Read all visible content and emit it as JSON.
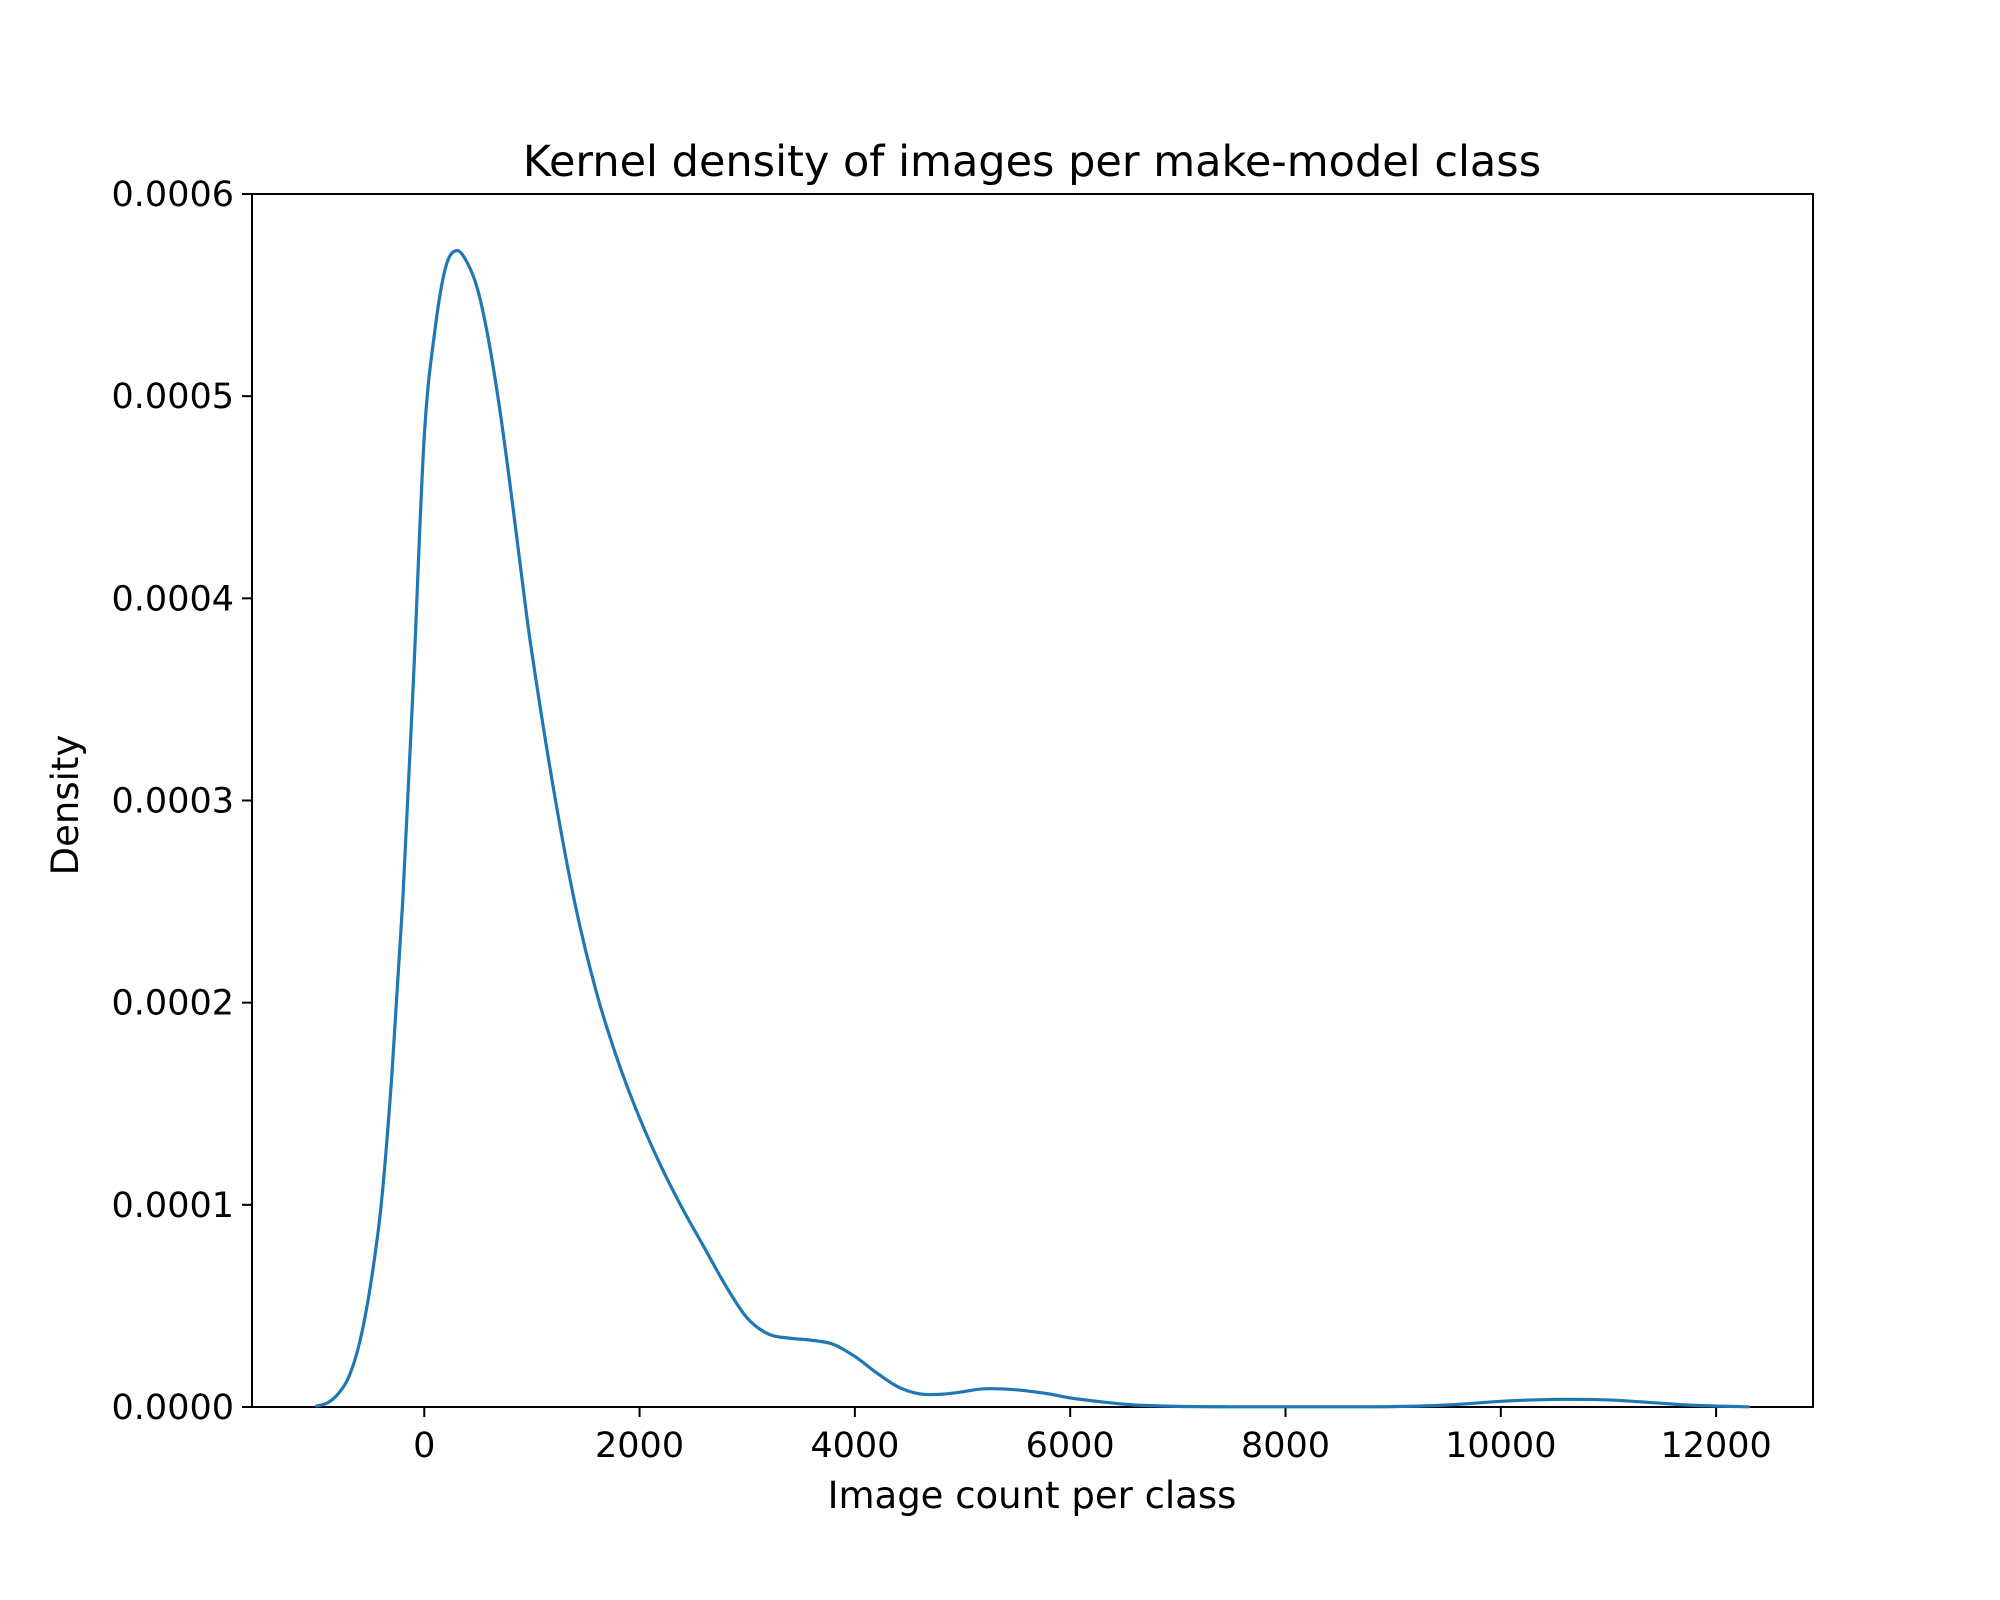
{
  "chart_data": {
    "type": "line",
    "title": "Kernel density of images per make-model class",
    "xlabel": "Image count per class",
    "ylabel": "Density",
    "xlim": [
      -1600,
      12900
    ],
    "ylim": [
      0,
      0.0006
    ],
    "xticks": [
      0,
      2000,
      4000,
      6000,
      8000,
      10000,
      12000
    ],
    "xtick_labels": [
      "0",
      "2000",
      "4000",
      "6000",
      "8000",
      "10000",
      "12000"
    ],
    "yticks": [
      0,
      0.0001,
      0.0002,
      0.0003,
      0.0004,
      0.0005,
      0.0006
    ],
    "ytick_labels": [
      "0.0000",
      "0.0001",
      "0.0002",
      "0.0003",
      "0.0004",
      "0.0005",
      "0.0006"
    ],
    "grid": false,
    "line_color": "#1f77b4",
    "series": [
      {
        "x": [
          -1000,
          -900,
          -800,
          -700,
          -600,
          -500,
          -400,
          -300,
          -200,
          -100,
          0,
          100,
          200,
          300,
          400,
          500,
          600,
          700,
          800,
          900,
          1000,
          1200,
          1400,
          1600,
          1800,
          2000,
          2200,
          2400,
          2600,
          2800,
          3000,
          3200,
          3400,
          3600,
          3800,
          4000,
          4200,
          4400,
          4600,
          4800,
          5000,
          5200,
          5500,
          5800,
          6000,
          6300,
          6600,
          7000,
          7500,
          8000,
          8500,
          9000,
          9500,
          10000,
          10300,
          10600,
          11000,
          11400,
          11800,
          12300
        ],
        "y": [
          5e-07,
          2e-06,
          6.5e-06,
          1.5e-05,
          3.2e-05,
          6e-05,
          0.0001,
          0.000165,
          0.00025,
          0.00036,
          0.00048,
          0.000533,
          0.000564,
          0.000572,
          0.000566,
          0.000552,
          0.000527,
          0.000494,
          0.000455,
          0.000413,
          0.000373,
          0.000306,
          0.000249,
          0.000205,
          0.000171,
          0.000143,
          0.000119,
          9.8e-05,
          7.9e-05,
          6e-05,
          4.4e-05,
          3.6e-05,
          3.4e-05,
          3.3e-05,
          3.1e-05,
          2.5e-05,
          1.7e-05,
          1e-05,
          6.5e-06,
          6.3e-06,
          7.5e-06,
          9e-06,
          8.5e-06,
          6.5e-06,
          4.5e-06,
          2.5e-06,
          1e-06,
          3e-07,
          1e-07,
          1e-07,
          1e-07,
          2e-07,
          1e-06,
          2.8e-06,
          3.5e-06,
          3.8e-06,
          3.5e-06,
          2.2e-06,
          8e-07,
          1e-07
        ]
      }
    ]
  }
}
